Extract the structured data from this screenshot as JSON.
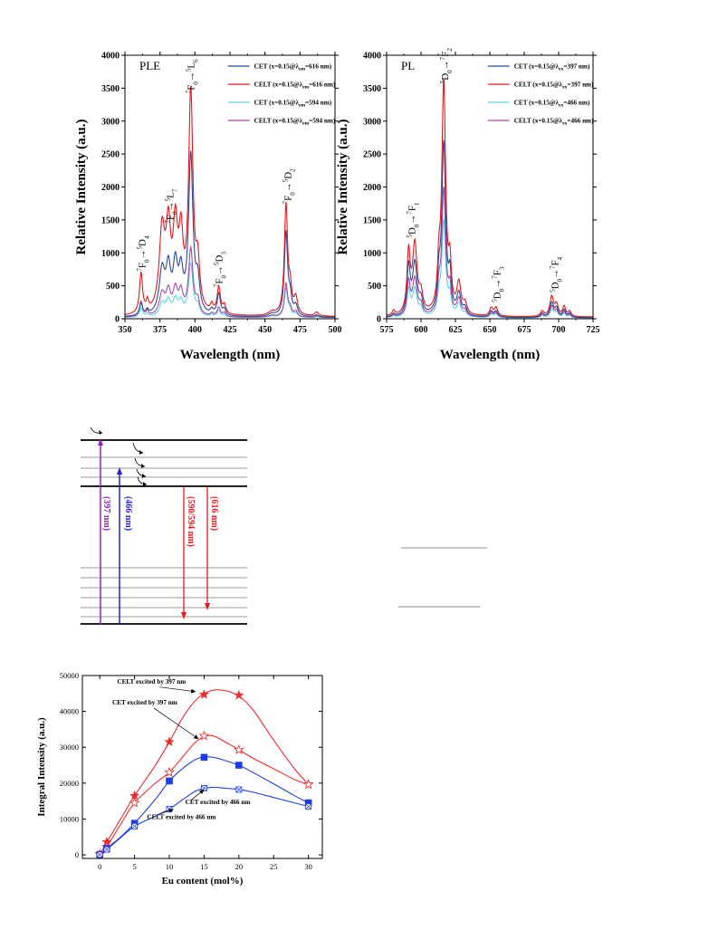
{
  "colors": {
    "cet_397": "#2b4b9b",
    "celt_397": "#e8191e",
    "cet_466": "#5fd3de",
    "celt_466": "#a64ba8",
    "level_purple": "#8e24c2",
    "level_blue": "#1f1fe0",
    "level_red": "#e8191e",
    "fig3_red": "#ef2b2b",
    "fig3_blue": "#1e3ce0"
  },
  "chart_data": [
    {
      "type": "line",
      "panel_label": "PLE",
      "xlabel": "Wavelength (nm)",
      "ylabel": "Relative Intensity (a.u.)",
      "xlim": [
        350,
        500
      ],
      "ylim": [
        0,
        4000
      ],
      "xticks": [
        "350",
        "375",
        "400",
        "425",
        "450",
        "475",
        "500"
      ],
      "yticks": [
        "0",
        "500",
        "1000",
        "1500",
        "2000",
        "2500",
        "3000",
        "3500",
        "4000"
      ],
      "legend_position": "top-right",
      "legend": [
        {
          "prefix": "CET (x=0.15@",
          "lam": "λ",
          "sub": "em",
          "suffix": "=616 nm)",
          "color_key": "cet_397"
        },
        {
          "prefix": "CELT (x=0.15@",
          "lam": "λ",
          "sub": "em",
          "suffix": "=616 nm)",
          "color_key": "celt_397"
        },
        {
          "prefix": "CET (x=0.15@",
          "lam": "λ",
          "sub": "em",
          "suffix": "=594 nm)",
          "color_key": "cet_466"
        },
        {
          "prefix": "CELT (x=0.15@",
          "lam": "λ",
          "sub": "em",
          "suffix": "=594 nm)",
          "color_key": "celt_466"
        }
      ],
      "baseline": [
        20,
        30,
        15,
        18
      ],
      "peaks": [
        {
          "center": 361.5,
          "width": 1.3,
          "heights": [
            185,
            610,
            140,
            230
          ]
        },
        {
          "center": 366,
          "width": 1.0,
          "heights": [
            70,
            150,
            50,
            80
          ]
        },
        {
          "center": 376.5,
          "width": 2.4,
          "heights": [
            660,
            1220,
            200,
            330
          ]
        },
        {
          "center": 381,
          "width": 2.0,
          "heights": [
            640,
            1150,
            220,
            340
          ]
        },
        {
          "center": 386,
          "width": 2.0,
          "heights": [
            700,
            1200,
            240,
            370
          ]
        },
        {
          "center": 390,
          "width": 1.8,
          "heights": [
            560,
            1020,
            200,
            320
          ]
        },
        {
          "center": 397,
          "width": 1.9,
          "heights": [
            2410,
            3300,
            790,
            1010
          ]
        },
        {
          "center": 402,
          "width": 1.6,
          "heights": [
            450,
            640,
            140,
            200
          ]
        },
        {
          "center": 412,
          "width": 1.2,
          "heights": [
            70,
            110,
            30,
            45
          ]
        },
        {
          "center": 417,
          "width": 1.4,
          "heights": [
            330,
            400,
            100,
            140
          ]
        },
        {
          "center": 421,
          "width": 1.2,
          "heights": [
            90,
            130,
            40,
            60
          ]
        },
        {
          "center": 455,
          "width": 3.0,
          "heights": [
            40,
            55,
            20,
            25
          ]
        },
        {
          "center": 465,
          "width": 1.4,
          "heights": [
            1270,
            1660,
            430,
            500
          ]
        },
        {
          "center": 468,
          "width": 1.3,
          "heights": [
            250,
            330,
            90,
            110
          ]
        },
        {
          "center": 472,
          "width": 1.5,
          "heights": [
            150,
            250,
            60,
            80
          ]
        },
        {
          "center": 487,
          "width": 1.6,
          "heights": [
            30,
            60,
            15,
            20
          ]
        }
      ],
      "annotations": [
        {
          "x": 362,
          "y": 720,
          "sup1": "7",
          "L1": "F",
          "sub1": "0",
          "sup2": "5",
          "L2": "D",
          "sub2": "4"
        },
        {
          "x": 382,
          "y": 1450,
          "sup1": "7",
          "L1": "F",
          "sub1": "0",
          "sup2": "5",
          "L2": "L",
          "sub2": "7"
        },
        {
          "x": 397,
          "y": 3420,
          "sup1": "7",
          "L1": "F",
          "sub1": "0",
          "sup2": "5",
          "L2": "L",
          "sub2": "6"
        },
        {
          "x": 417,
          "y": 480,
          "sup1": "7",
          "L1": "F",
          "sub1": "0",
          "sup2": "5",
          "L2": "D",
          "sub2": "3"
        },
        {
          "x": 466,
          "y": 1740,
          "sup1": "7",
          "L1": "F",
          "sub1": "0",
          "sup2": "5",
          "L2": "D",
          "sub2": "2"
        }
      ]
    },
    {
      "type": "line",
      "panel_label": "PL",
      "xlabel": "Wavelength (nm)",
      "ylabel": "Relative Intensity (a.u.)",
      "xlim": [
        575,
        725
      ],
      "ylim": [
        0,
        4000
      ],
      "xticks": [
        "575",
        "600",
        "625",
        "650",
        "675",
        "700",
        "725"
      ],
      "yticks": [
        "0",
        "500",
        "1000",
        "1500",
        "2000",
        "2500",
        "3000",
        "3500",
        "4000"
      ],
      "legend_position": "top-right",
      "legend": [
        {
          "prefix": "CET (x=0.15@",
          "lam": "λ",
          "sub": "ex",
          "suffix": "=397 nm)",
          "color_key": "cet_397"
        },
        {
          "prefix": "CELT (x=0.15@",
          "lam": "λ",
          "sub": "ex",
          "suffix": "=397 nm)",
          "color_key": "celt_397"
        },
        {
          "prefix": "CET (x=0.15@",
          "lam": "λ",
          "sub": "ex",
          "suffix": "=466 nm)",
          "color_key": "cet_466"
        },
        {
          "prefix": "CELT (x=0.15@",
          "lam": "λ",
          "sub": "ex",
          "suffix": "=466 nm)",
          "color_key": "celt_466"
        }
      ],
      "baseline": [
        15,
        25,
        10,
        15
      ],
      "peaks": [
        {
          "center": 580,
          "width": 1.2,
          "heights": [
            40,
            70,
            20,
            30
          ]
        },
        {
          "center": 591,
          "width": 1.4,
          "heights": [
            720,
            900,
            400,
            500
          ]
        },
        {
          "center": 595.5,
          "width": 2.0,
          "heights": [
            780,
            1050,
            420,
            560
          ]
        },
        {
          "center": 600,
          "width": 1.5,
          "heights": [
            200,
            260,
            110,
            140
          ]
        },
        {
          "center": 613,
          "width": 1.2,
          "heights": [
            450,
            560,
            240,
            330
          ]
        },
        {
          "center": 616.5,
          "width": 1.7,
          "heights": [
            2600,
            3480,
            1450,
            1920
          ]
        },
        {
          "center": 621,
          "width": 1.2,
          "heights": [
            500,
            620,
            260,
            350
          ]
        },
        {
          "center": 627.5,
          "width": 1.8,
          "heights": [
            320,
            450,
            190,
            250
          ]
        },
        {
          "center": 632,
          "width": 1.6,
          "heights": [
            110,
            150,
            60,
            80
          ]
        },
        {
          "center": 651,
          "width": 1.4,
          "heights": [
            85,
            120,
            50,
            65
          ]
        },
        {
          "center": 654.5,
          "width": 1.5,
          "heights": [
            90,
            130,
            55,
            70
          ]
        },
        {
          "center": 688,
          "width": 1.5,
          "heights": [
            60,
            80,
            30,
            40
          ]
        },
        {
          "center": 695,
          "width": 1.6,
          "heights": [
            220,
            300,
            130,
            170
          ]
        },
        {
          "center": 698.5,
          "width": 1.4,
          "heights": [
            130,
            170,
            80,
            100
          ]
        },
        {
          "center": 704,
          "width": 1.3,
          "heights": [
            110,
            150,
            65,
            85
          ]
        },
        {
          "center": 708,
          "width": 1.2,
          "heights": [
            60,
            80,
            35,
            45
          ]
        }
      ],
      "annotations": [
        {
          "x": 593,
          "y": 1230,
          "sup1": "5",
          "L1": "D",
          "sub1": "0",
          "sup2": "7",
          "L2": "F",
          "sub2": "1"
        },
        {
          "x": 617,
          "y": 3570,
          "sup1": "5",
          "L1": "D",
          "sub1": "0",
          "sup2": "7",
          "L2": "F",
          "sub2": "2"
        },
        {
          "x": 655,
          "y": 250,
          "sup1": "5",
          "L1": "D",
          "sub1": "0",
          "sup2": "7",
          "L2": "F",
          "sub2": "3"
        },
        {
          "x": 697,
          "y": 400,
          "sup1": "5",
          "L1": "D",
          "sub1": "0",
          "sup2": "7",
          "L2": "F",
          "sub2": "4"
        }
      ]
    },
    {
      "type": "scatter",
      "xlabel": "Eu content (mol%)",
      "ylabel": "Integral Intensity (a.u.)",
      "xlim": [
        -2.5,
        32
      ],
      "ylim": [
        -1000,
        50000
      ],
      "xticks": [
        0,
        5,
        10,
        15,
        20,
        25,
        30
      ],
      "yticks": [
        0,
        10000,
        20000,
        30000,
        40000,
        50000
      ],
      "series": [
        {
          "name": "CELT excited by 397 nm",
          "color_key": "fig3_red",
          "marker": "star-filled",
          "x": [
            0,
            1,
            5,
            10,
            15,
            20,
            30
          ],
          "y": [
            200,
            3600,
            16500,
            31500,
            44700,
            44500,
            19700
          ]
        },
        {
          "name": "CET excited by 397 nm",
          "color_key": "fig3_red",
          "marker": "star-open",
          "x": [
            0,
            1,
            5,
            10,
            15,
            20,
            30
          ],
          "y": [
            150,
            2200,
            14500,
            23000,
            33200,
            29300,
            19600
          ]
        },
        {
          "name": "CET excited by 466 nm",
          "color_key": "fig3_blue",
          "marker": "square-filled",
          "x": [
            0,
            1,
            5,
            10,
            15,
            20,
            30
          ],
          "y": [
            100,
            1800,
            8800,
            20600,
            27200,
            25000,
            14500
          ]
        },
        {
          "name": "CELT excited by 466 nm",
          "color_key": "fig3_blue",
          "marker": "square-x",
          "x": [
            0,
            1,
            5,
            10,
            15,
            20,
            30
          ],
          "y": [
            80,
            1500,
            8000,
            12800,
            18600,
            18200,
            13500
          ]
        }
      ],
      "curves": [
        {
          "color_key": "fig3_red",
          "x": [
            0,
            1,
            3,
            5,
            8,
            10,
            12,
            14,
            16,
            18,
            20,
            22,
            25,
            28,
            30
          ],
          "y": [
            200,
            3500,
            10000,
            16500,
            25000,
            31500,
            38500,
            43500,
            45800,
            45800,
            44200,
            40500,
            32000,
            24000,
            19700
          ]
        },
        {
          "color_key": "fig3_red",
          "x": [
            0,
            1,
            3,
            5,
            8,
            10,
            12,
            14,
            16,
            18,
            20,
            22,
            25,
            28,
            30
          ],
          "y": [
            150,
            2200,
            8500,
            14500,
            20000,
            23000,
            27500,
            31800,
            33300,
            31500,
            29300,
            27000,
            24000,
            21000,
            19600
          ]
        },
        {
          "color_key": "fig3_blue",
          "x": [
            0,
            1,
            3,
            5,
            8,
            10,
            12,
            14,
            16,
            18,
            20,
            22,
            25,
            28,
            30
          ],
          "y": [
            100,
            1800,
            5000,
            8800,
            15500,
            20600,
            24200,
            26800,
            27300,
            26300,
            25000,
            23000,
            19800,
            16500,
            14500
          ]
        },
        {
          "color_key": "fig3_blue",
          "x": [
            0,
            1,
            3,
            5,
            8,
            10,
            12,
            14,
            16,
            18,
            20,
            22,
            25,
            28,
            30
          ],
          "y": [
            80,
            1500,
            4800,
            8000,
            10800,
            12800,
            15500,
            18000,
            18800,
            18600,
            18200,
            17500,
            16000,
            14500,
            13500
          ]
        }
      ],
      "labels": [
        {
          "text": "CELT excited by 397 nm",
          "x": 2.5,
          "y": 47700,
          "to_x": 13.8,
          "to_y": 45500,
          "arrow_from_x": 8.6,
          "arrow_from_y": 46800
        },
        {
          "text": "CET excited by 397 nm",
          "x": 1.8,
          "y": 41900,
          "to_x": 14.2,
          "to_y": 32300,
          "arrow_from_x": 7.8,
          "arrow_from_y": 40900
        },
        {
          "text": "CET excited by 466 nm",
          "x": 12.3,
          "y": 14200,
          "to_x": 15.0,
          "to_y": 18200,
          "arrow_from_x": 13.2,
          "arrow_from_y": 15400
        },
        {
          "text": "CELT excited by 466 nm",
          "x": 6.8,
          "y": 10000,
          "to_x": 10.6,
          "to_y": 12700,
          "arrow_from_x": 8.3,
          "arrow_from_y": 11200
        }
      ]
    }
  ],
  "energy_diagram": {
    "excitation_labels": [
      "(397 nm)",
      "(466 nm)"
    ],
    "emission_labels": [
      "(590/594 nm)",
      "(616 nm)"
    ]
  }
}
